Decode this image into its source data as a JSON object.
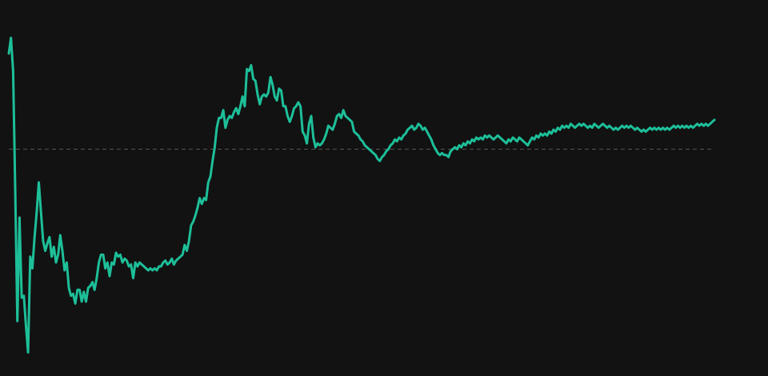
{
  "chart_data": {
    "type": "line",
    "title": "",
    "xlabel": "",
    "ylabel": "",
    "xlim": [
      0,
      330
    ],
    "ylim": [
      -1.12,
      0.6
    ],
    "grid": false,
    "legend": "none",
    "baseline": 0,
    "colors": {
      "background": "#121212",
      "line": "#1dbf99",
      "baseline": "#555555"
    },
    "series": [
      {
        "values": [
          0.49,
          0.57,
          0.4,
          -0.2,
          -0.88,
          -0.35,
          -0.76,
          -0.75,
          -0.9,
          -1.04,
          -0.55,
          -0.61,
          -0.45,
          -0.32,
          -0.17,
          -0.32,
          -0.47,
          -0.52,
          -0.48,
          -0.45,
          -0.55,
          -0.5,
          -0.58,
          -0.54,
          -0.44,
          -0.52,
          -0.62,
          -0.58,
          -0.71,
          -0.75,
          -0.74,
          -0.79,
          -0.72,
          -0.72,
          -0.78,
          -0.73,
          -0.78,
          -0.71,
          -0.7,
          -0.68,
          -0.72,
          -0.66,
          -0.58,
          -0.54,
          -0.54,
          -0.61,
          -0.58,
          -0.65,
          -0.58,
          -0.59,
          -0.53,
          -0.55,
          -0.54,
          -0.58,
          -0.56,
          -0.57,
          -0.6,
          -0.59,
          -0.66,
          -0.58,
          -0.6,
          -0.58,
          -0.59,
          -0.6,
          -0.61,
          -0.62,
          -0.61,
          -0.62,
          -0.61,
          -0.62,
          -0.6,
          -0.6,
          -0.58,
          -0.57,
          -0.59,
          -0.58,
          -0.56,
          -0.59,
          -0.57,
          -0.56,
          -0.55,
          -0.54,
          -0.49,
          -0.52,
          -0.47,
          -0.39,
          -0.37,
          -0.34,
          -0.3,
          -0.25,
          -0.28,
          -0.25,
          -0.26,
          -0.17,
          -0.14,
          -0.06,
          0.01,
          0.11,
          0.16,
          0.16,
          0.2,
          0.11,
          0.15,
          0.17,
          0.16,
          0.19,
          0.21,
          0.18,
          0.22,
          0.27,
          0.22,
          0.41,
          0.4,
          0.43,
          0.36,
          0.35,
          0.28,
          0.23,
          0.27,
          0.28,
          0.27,
          0.29,
          0.37,
          0.33,
          0.27,
          0.25,
          0.31,
          0.3,
          0.22,
          0.22,
          0.17,
          0.14,
          0.17,
          0.21,
          0.22,
          0.24,
          0.22,
          0.09,
          0.07,
          0.03,
          0.13,
          0.17,
          0.06,
          0.01,
          0.03,
          0.02,
          0.03,
          0.05,
          0.08,
          0.12,
          0.11,
          0.1,
          0.13,
          0.17,
          0.18,
          0.16,
          0.2,
          0.17,
          0.16,
          0.15,
          0.14,
          0.09,
          0.08,
          0.07,
          0.05,
          0.04,
          0.02,
          0.01,
          0.0,
          -0.01,
          -0.02,
          -0.03,
          -0.05,
          -0.06,
          -0.04,
          -0.03,
          -0.01,
          0.0,
          0.02,
          0.03,
          0.05,
          0.04,
          0.06,
          0.05,
          0.07,
          0.08,
          0.1,
          0.11,
          0.12,
          0.1,
          0.11,
          0.13,
          0.12,
          0.1,
          0.11,
          0.09,
          0.07,
          0.05,
          0.02,
          0.0,
          -0.02,
          -0.03,
          -0.02,
          -0.03,
          -0.03,
          -0.04,
          -0.01,
          0.0,
          0.01,
          0.0,
          0.02,
          0.01,
          0.03,
          0.02,
          0.04,
          0.03,
          0.05,
          0.04,
          0.06,
          0.05,
          0.06,
          0.05,
          0.07,
          0.06,
          0.07,
          0.06,
          0.05,
          0.06,
          0.07,
          0.06,
          0.05,
          0.04,
          0.03,
          0.05,
          0.04,
          0.06,
          0.05,
          0.04,
          0.06,
          0.05,
          0.04,
          0.03,
          0.02,
          0.04,
          0.06,
          0.05,
          0.07,
          0.06,
          0.08,
          0.07,
          0.08,
          0.07,
          0.09,
          0.08,
          0.1,
          0.09,
          0.11,
          0.1,
          0.12,
          0.11,
          0.12,
          0.11,
          0.13,
          0.12,
          0.11,
          0.12,
          0.13,
          0.12,
          0.13,
          0.12,
          0.11,
          0.12,
          0.11,
          0.13,
          0.12,
          0.11,
          0.12,
          0.13,
          0.12,
          0.11,
          0.12,
          0.11,
          0.1,
          0.11,
          0.1,
          0.11,
          0.12,
          0.11,
          0.12,
          0.11,
          0.12,
          0.11,
          0.1,
          0.11,
          0.1,
          0.09,
          0.1,
          0.09,
          0.1,
          0.11,
          0.1,
          0.11,
          0.1,
          0.11,
          0.1,
          0.11,
          0.1,
          0.11,
          0.1,
          0.11,
          0.12,
          0.11,
          0.12,
          0.11,
          0.12,
          0.11,
          0.12,
          0.11,
          0.12,
          0.11,
          0.12,
          0.13,
          0.12,
          0.13,
          0.12,
          0.13,
          0.12,
          0.13,
          0.14,
          0.15
        ]
      }
    ]
  }
}
